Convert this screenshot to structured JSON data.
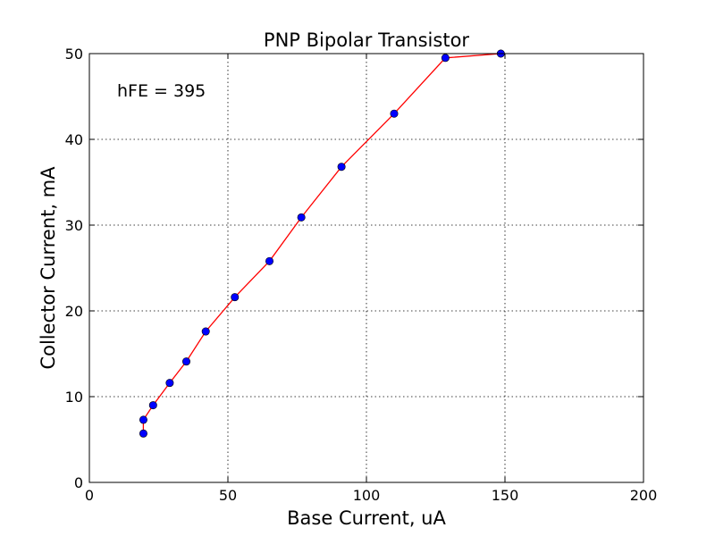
{
  "chart_data": {
    "type": "line",
    "title": "PNP Bipolar Transistor",
    "xlabel": "Base Current, uA",
    "ylabel": "Collector Current, mA",
    "xlim": [
      0,
      200
    ],
    "ylim": [
      0,
      50
    ],
    "xticks": [
      0,
      50,
      100,
      150,
      200
    ],
    "yticks": [
      0,
      10,
      20,
      30,
      40,
      50
    ],
    "grid": true,
    "annotation": "hFE = 395",
    "series": [
      {
        "x": [
          19.5,
          19.5,
          23.0,
          29.0,
          35.0,
          42.0,
          52.5,
          65.0,
          76.5,
          91.0,
          110.0,
          128.5,
          148.5
        ],
        "y": [
          5.7,
          7.3,
          9.0,
          11.6,
          14.1,
          17.6,
          21.6,
          25.8,
          30.9,
          36.8,
          43.0,
          49.5,
          50.0
        ],
        "line_color": "#ff0000",
        "marker_color": "#0000ff"
      }
    ]
  }
}
